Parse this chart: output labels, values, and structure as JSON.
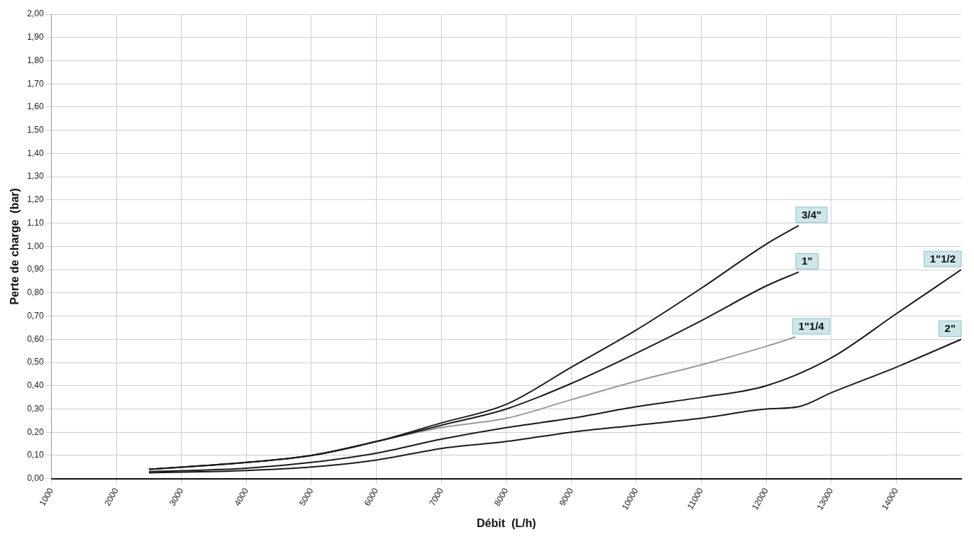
{
  "chart_data": {
    "type": "line",
    "xlabel": "Débit  (L/h)",
    "ylabel": "Perte de charge  (bar)",
    "xlim": [
      1000,
      15000
    ],
    "xticks": [
      1000,
      2000,
      3000,
      4000,
      5000,
      6000,
      7000,
      8000,
      9000,
      10000,
      11000,
      12000,
      13000,
      14000
    ],
    "ylim": [
      0,
      2
    ],
    "yticks": [
      {
        "value": 0,
        "label": "0,00"
      },
      {
        "value": 0.1,
        "label": "0,10"
      },
      {
        "value": 0.2,
        "label": "0,20"
      },
      {
        "value": 0.3,
        "label": "0,30"
      },
      {
        "value": 0.4,
        "label": "0,40"
      },
      {
        "value": 0.5,
        "label": "0,50"
      },
      {
        "value": 0.6,
        "label": "0,60"
      },
      {
        "value": 0.7,
        "label": "0,70"
      },
      {
        "value": 0.8,
        "label": "0,80"
      },
      {
        "value": 0.9,
        "label": "0,90"
      },
      {
        "value": 1,
        "label": "1,00"
      },
      {
        "value": 1.1,
        "label": "1,10"
      },
      {
        "value": 1.2,
        "label": "1,20"
      },
      {
        "value": 1.3,
        "label": "1,30"
      },
      {
        "value": 1.4,
        "label": "1,40"
      },
      {
        "value": 1.5,
        "label": "1,50"
      },
      {
        "value": 1.6,
        "label": "1,60"
      },
      {
        "value": 1.7,
        "label": "1,70"
      },
      {
        "value": 1.8,
        "label": "1,80"
      },
      {
        "value": 1.9,
        "label": "1,90"
      },
      {
        "value": 2,
        "label": "2,00"
      }
    ],
    "grid": true,
    "legend": false,
    "marker": "none",
    "line_style": "solid",
    "series": [
      {
        "name": "3/4\"",
        "color": "#1a1a1a",
        "x": [
          2500,
          4000,
          5000,
          6000,
          7000,
          8000,
          9000,
          10000,
          11000,
          12000,
          12500
        ],
        "values": [
          0.04,
          0.07,
          0.1,
          0.16,
          0.24,
          0.32,
          0.48,
          0.64,
          0.82,
          1.01,
          1.09
        ]
      },
      {
        "name": "1\"",
        "color": "#1a1a1a",
        "x": [
          2500,
          4000,
          5000,
          6000,
          7000,
          8000,
          9000,
          10000,
          11000,
          12000,
          12500
        ],
        "values": [
          0.04,
          0.07,
          0.1,
          0.16,
          0.23,
          0.3,
          0.41,
          0.54,
          0.68,
          0.83,
          0.89
        ]
      },
      {
        "name": "1\"1/4",
        "color": "#999999",
        "x": [
          2500,
          4000,
          5000,
          6000,
          7000,
          8000,
          9000,
          10000,
          11000,
          12000,
          12450
        ],
        "values": [
          0.04,
          0.07,
          0.1,
          0.16,
          0.22,
          0.26,
          0.34,
          0.42,
          0.49,
          0.57,
          0.61
        ]
      },
      {
        "name": "1\"1/2",
        "color": "#1a1a1a",
        "x": [
          2500,
          4000,
          5000,
          6000,
          7000,
          8000,
          9000,
          10000,
          11000,
          12000,
          13000,
          14000,
          15000
        ],
        "values": [
          0.03,
          0.045,
          0.07,
          0.11,
          0.17,
          0.22,
          0.26,
          0.31,
          0.35,
          0.4,
          0.52,
          0.71,
          0.9
        ]
      },
      {
        "name": "2\"",
        "color": "#1a1a1a",
        "x": [
          2500,
          4000,
          5000,
          6000,
          7000,
          8000,
          9000,
          10000,
          11000,
          12000,
          12500,
          13000,
          14000,
          15000
        ],
        "values": [
          0.025,
          0.035,
          0.05,
          0.08,
          0.13,
          0.16,
          0.2,
          0.23,
          0.26,
          0.3,
          0.31,
          0.37,
          0.48,
          0.6
        ]
      }
    ]
  }
}
